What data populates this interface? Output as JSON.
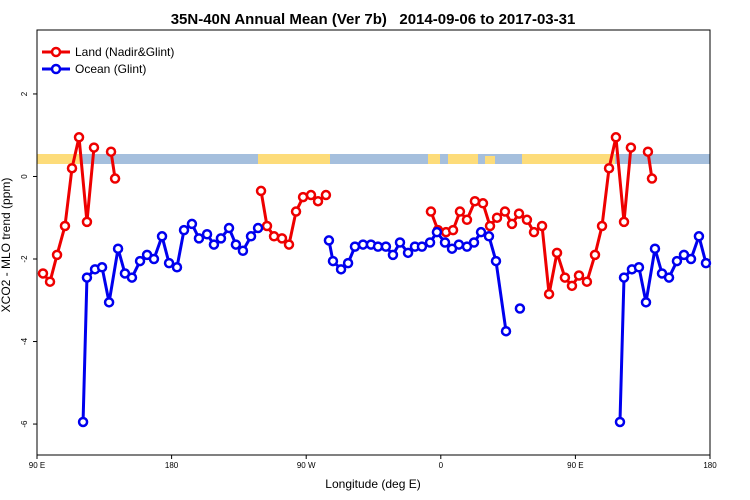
{
  "chart_data": {
    "type": "line",
    "title": "35N-40N Annual Mean (Ver 7b)   2014-09-06 to 2017-03-31",
    "x_label": "Longitude (deg E)",
    "y_label": "XCO2 - MLO trend (ppm)",
    "xlim": [
      90,
      540
    ],
    "ylim": [
      -6.75,
      3.55
    ],
    "xticks": [
      {
        "value": 90,
        "label": "90 E"
      },
      {
        "value": 180,
        "label": "180"
      },
      {
        "value": 270,
        "label": "90 W"
      },
      {
        "value": 360,
        "label": "0"
      },
      {
        "value": 450,
        "label": "90 E"
      },
      {
        "value": 540,
        "label": "180"
      }
    ],
    "yticks": [
      -6,
      -4,
      -2,
      0,
      2
    ],
    "legend": "top-left",
    "series": [
      {
        "name": "Land (Nadir&Glint)",
        "color": "#ee0000",
        "x": [
          94,
          98.7,
          103.4,
          108.7,
          113.4,
          118.1,
          123.4,
          128.1,
          133.5,
          139.5,
          142.2,
          190,
          239.8,
          243.8,
          248.5,
          253.8,
          258.5,
          263.2,
          267.9,
          273.2,
          277.9,
          283.2,
          320,
          353.4,
          358.1,
          363.5,
          368.2,
          372.8,
          377.5,
          382.8,
          388.2,
          392.9,
          397.6,
          402.9,
          407.6,
          412.3,
          417.6,
          422.3,
          427.7,
          432.4,
          437.7,
          443,
          447.7,
          452.4,
          457.7,
          463.1,
          467.8,
          472.5,
          477.1,
          482.5,
          487.1,
          493,
          498.5,
          501.2
        ],
        "values": [
          -2.35,
          -2.55,
          -1.9,
          -1.2,
          0.2,
          0.95,
          -1.1,
          0.7,
          null,
          0.6,
          -0.05,
          null,
          -0.35,
          -1.2,
          -1.45,
          -1.5,
          -1.65,
          -0.85,
          -0.5,
          -0.45,
          -0.6,
          -0.45,
          null,
          -0.85,
          -1.3,
          -1.35,
          -1.3,
          -0.85,
          -1.05,
          -0.6,
          -0.65,
          -1.2,
          -1.0,
          -0.85,
          -1.15,
          -0.9,
          -1.05,
          -1.35,
          -1.2,
          -2.85,
          -1.85,
          -2.45,
          -2.65,
          -2.4,
          -2.55,
          -1.9,
          -1.2,
          0.2,
          0.95,
          -1.1,
          0.7,
          null,
          0.6,
          -0.05
        ]
      },
      {
        "name": "Ocean (Glint)",
        "color": "#0000ee",
        "x": [
          120.8,
          123.4,
          128.8,
          133.5,
          138.2,
          144.2,
          148.8,
          153.5,
          158.9,
          163.6,
          168.2,
          173.6,
          178.3,
          183.6,
          188.3,
          193.6,
          198.3,
          203.7,
          208.3,
          213,
          218.4,
          223,
          227.7,
          233.1,
          237.8,
          260,
          285.2,
          287.9,
          293.3,
          298,
          302.6,
          308,
          313.3,
          318,
          323.3,
          328,
          332.7,
          338.1,
          342.7,
          347.4,
          352.8,
          357.4,
          362.8,
          367.5,
          372.1,
          377.5,
          382.2,
          386.9,
          392.2,
          396.9,
          403.6,
          407,
          412.9,
          450,
          479.8,
          482.5,
          487.8,
          492.5,
          497.2,
          503.2,
          507.9,
          512.6,
          517.9,
          522.6,
          527.3,
          532.6,
          537.3
        ],
        "values": [
          -5.95,
          -2.45,
          -2.25,
          -2.2,
          -3.05,
          -1.75,
          -2.35,
          -2.45,
          -2.05,
          -1.9,
          -2.0,
          -1.45,
          -2.1,
          -2.2,
          -1.3,
          -1.15,
          -1.5,
          -1.4,
          -1.65,
          -1.5,
          -1.25,
          -1.65,
          -1.8,
          -1.45,
          -1.25,
          null,
          -1.55,
          -2.05,
          -2.25,
          -2.1,
          -1.7,
          -1.65,
          -1.65,
          -1.7,
          -1.7,
          -1.9,
          -1.6,
          -1.85,
          -1.7,
          -1.7,
          -1.6,
          -1.35,
          -1.6,
          -1.75,
          -1.65,
          -1.7,
          -1.6,
          -1.35,
          -1.45,
          -2.05,
          -3.75,
          null,
          -3.2,
          null,
          -5.95,
          -2.45,
          -2.25,
          -2.2,
          -3.05,
          -1.75,
          -2.35,
          -2.45,
          -2.05,
          -1.9,
          -2.0,
          -1.45,
          -2.1
        ]
      }
    ]
  }
}
